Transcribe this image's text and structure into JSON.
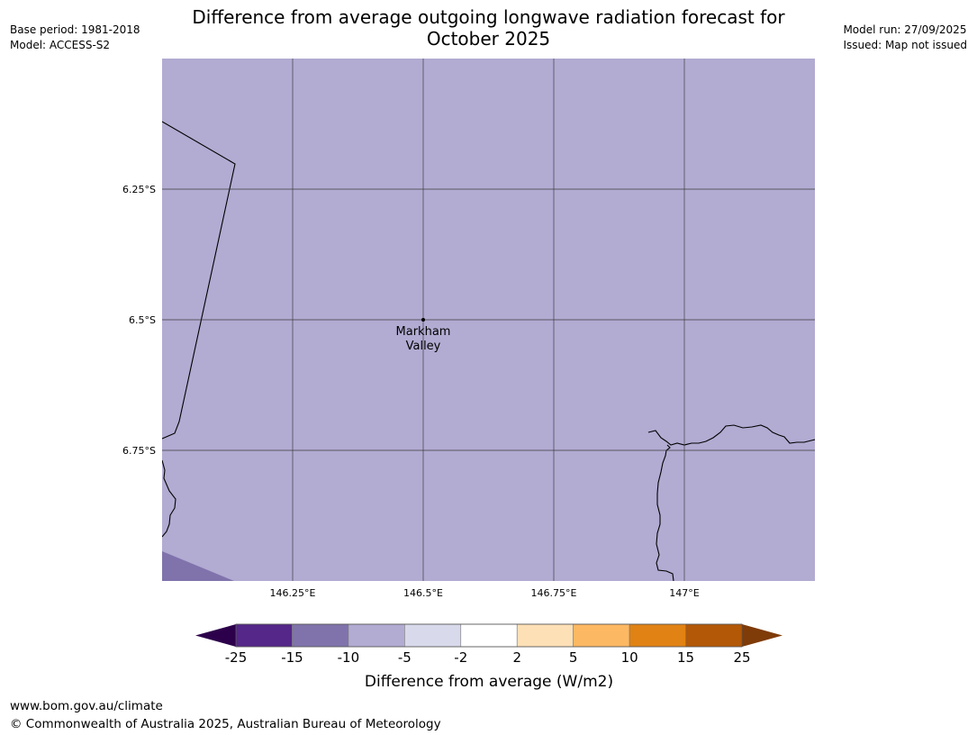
{
  "header": {
    "title_line1": "Difference from average outgoing longwave radiation forecast for",
    "title_line2": "October 2025",
    "base_period": "Base period: 1981-2018",
    "model": "Model: ACCESS-S2",
    "model_run": "Model run: 27/09/2025",
    "issued": "Issued: Map not issued"
  },
  "map": {
    "fill_color": "#b2abd2",
    "lower_class_color": "#8073ac",
    "extent": {
      "lon_min": 146.0,
      "lon_max": 147.25,
      "lat_min": -7.0,
      "lat_max": -6.0
    },
    "lat_ticks": [
      {
        "value": -6.25,
        "label": "6.25°S"
      },
      {
        "value": -6.5,
        "label": "6.5°S"
      },
      {
        "value": -6.75,
        "label": "6.75°S"
      }
    ],
    "lon_ticks": [
      {
        "value": 146.25,
        "label": "146.25°E"
      },
      {
        "value": 146.5,
        "label": "146.5°E"
      },
      {
        "value": 146.75,
        "label": "146.75°E"
      },
      {
        "value": 147.0,
        "label": "147°E"
      }
    ],
    "location": {
      "lon": 146.5,
      "lat": -6.5,
      "label_line1": "Markham",
      "label_line2": "Valley"
    }
  },
  "colorbar": {
    "label": "Difference from average (W/m2)",
    "ticks": [
      "-25",
      "-15",
      "-10",
      "-5",
      "-2",
      "2",
      "5",
      "10",
      "15",
      "25"
    ],
    "under_color": "#2d004b",
    "over_color": "#7f3b08",
    "colors": [
      "#542788",
      "#8073ac",
      "#b2abd2",
      "#d8daeb",
      "#ffffff",
      "#fee0b6",
      "#fdb863",
      "#e08214",
      "#b35806"
    ]
  },
  "footer": {
    "url": "www.bom.gov.au/climate",
    "copyright": "© Commonwealth of Australia 2025, Australian Bureau of Meteorology"
  }
}
